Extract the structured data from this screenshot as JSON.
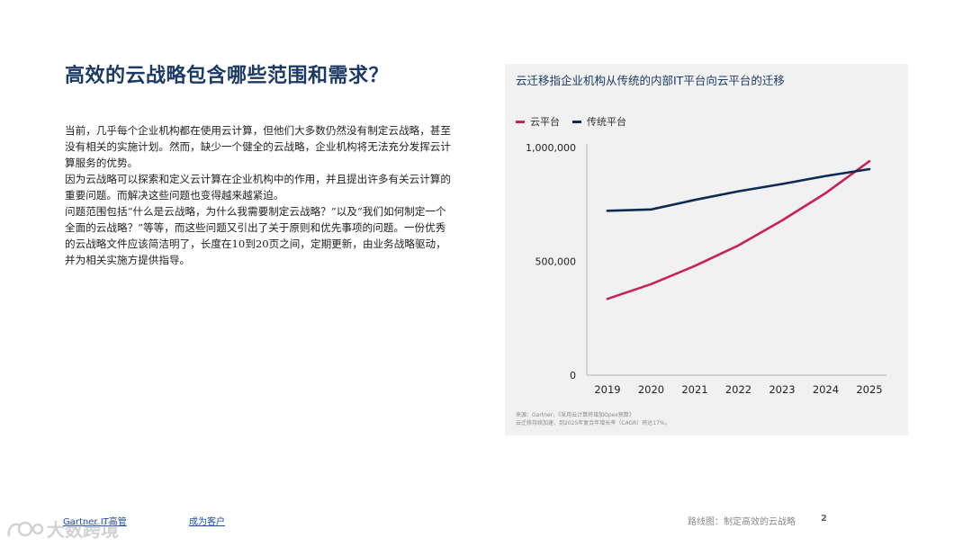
{
  "page": {
    "title": "高效的云战略包含哪些范围和需求？",
    "paragraphs": [
      "当前，几乎每个企业机构都在使用云计算，但他们大多数仍然没有制定云战略，甚至没有相关的实施计划。然而，缺少一个健全的云战略，企业机构将无法充分发挥云计算服务的优势。",
      "因为云战略可以探索和定义云计算在企业机构中的作用，并且提出许多有关云计算的重要问题。而解决这些问题也变得越来越紧迫。",
      "问题范围包括“什么是云战略，为什么我需要制定云战略？”以及“我们如何制定一个全面的云战略？”等等，而这些问题又引出了关于原则和优先事项的问题。一份优秀的云战略文件应该简洁明了，长度在10到20页之间，定期更新，由业务战略驱动，并为相关实施方提供指导。"
    ]
  },
  "chart_data": {
    "type": "line",
    "title": "云迁移指企业机构从传统的内部IT平台向云平台的迁移",
    "x": [
      "2019",
      "2020",
      "2021",
      "2022",
      "2023",
      "2024",
      "2025"
    ],
    "series": [
      {
        "name": "云平台",
        "color": "#c8215a",
        "values": [
          335000,
          400000,
          480000,
          570000,
          680000,
          800000,
          940000
        ]
      },
      {
        "name": "传统平台",
        "color": "#0d2a52",
        "values": [
          722000,
          728000,
          770000,
          808000,
          840000,
          875000,
          905000
        ]
      }
    ],
    "y_ticks": [
      0,
      500000,
      1000000
    ],
    "y_tick_labels": [
      "0",
      "500,000",
      "1,000,000"
    ],
    "ylim": [
      0,
      1000000
    ],
    "legend_position": "top-left",
    "grid": false,
    "source_lines": [
      "来源：Gartner，《采用云计算将增加Opex预算》",
      "云迁移持续加速，到2025年复合年增长率（CAGR）将达17%。"
    ]
  },
  "footer": {
    "link_left": "Gartner IT高管",
    "link_middle": "成为客户",
    "section": "路线图：制定高效的云战略",
    "page_number": "2"
  },
  "watermark": {
    "text": "大数跨境"
  }
}
